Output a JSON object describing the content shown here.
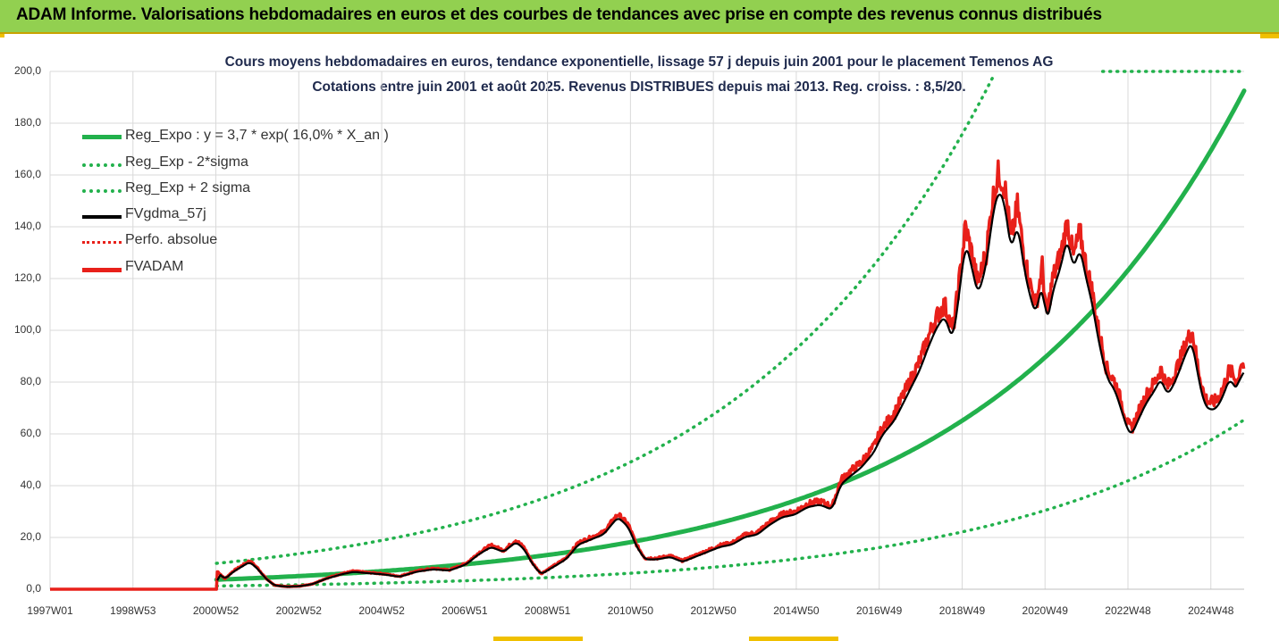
{
  "header": {
    "title": "ADAM Informe. Valorisations hebdomadaires en euros et des courbes de tendances avec prise en compte des revenus connus distribués"
  },
  "chart_data": {
    "type": "line",
    "title_line1": "Cours moyens hebdomadaires en euros, tendance exponentielle, lissage 57 j depuis juin 2001 pour le placement Temenos AG",
    "title_line2": "Cotations entre juin 2001 et août 2025. Revenus DISTRIBUES depuis mai 2013. Reg. croiss. : 8,5/20.",
    "y_ticks": [
      "0,0",
      "20,0",
      "40,0",
      "60,0",
      "80,0",
      "100,0",
      "120,0",
      "140,0",
      "160,0",
      "180,0",
      "200,0"
    ],
    "ylim": [
      0,
      200
    ],
    "x_ticks": [
      "1997W01",
      "1998W53",
      "2000W52",
      "2002W52",
      "2004W52",
      "2006W51",
      "2008W51",
      "2010W50",
      "2012W50",
      "2014W50",
      "2016W49",
      "2018W49",
      "2020W49",
      "2022W48",
      "2024W48"
    ],
    "xlim": [
      1997.0,
      2025.7
    ],
    "grid": true,
    "legend_position": "top-left",
    "series": [
      {
        "name": "Reg_Expo : y = 3,7 * exp( 16,0% *  X_an )",
        "color": "#22b14c",
        "style": "solid",
        "trend": "center"
      },
      {
        "name": "Reg_Exp - 2*sigma",
        "color": "#22b14c",
        "style": "dotted",
        "trend": "low"
      },
      {
        "name": "Reg_Exp + 2 sigma",
        "color": "#22b14c",
        "style": "dotted",
        "trend": "high"
      },
      {
        "name": "FVgdma_57j",
        "color": "#000000",
        "style": "solid",
        "trend": "smooth"
      },
      {
        "name": "Perfo. absolue",
        "color": "#e8201a",
        "style": "dotted",
        "trend": "none"
      },
      {
        "name": "FVADAM",
        "color": "#e8201a",
        "style": "solid",
        "trend": "price"
      }
    ],
    "price_points": [
      [
        1997.0,
        0
      ],
      [
        2001.0,
        0
      ],
      [
        2001.02,
        7
      ],
      [
        2001.2,
        4
      ],
      [
        2001.4,
        7
      ],
      [
        2001.6,
        9
      ],
      [
        2001.8,
        11
      ],
      [
        2002.0,
        8
      ],
      [
        2002.2,
        4
      ],
      [
        2002.4,
        1.5
      ],
      [
        2002.7,
        1
      ],
      [
        2003.0,
        1.2
      ],
      [
        2003.3,
        2
      ],
      [
        2003.6,
        4
      ],
      [
        2004.0,
        6
      ],
      [
        2004.3,
        7
      ],
      [
        2004.6,
        6.5
      ],
      [
        2005.0,
        6
      ],
      [
        2005.4,
        5
      ],
      [
        2005.8,
        7
      ],
      [
        2006.2,
        8
      ],
      [
        2006.6,
        7.5
      ],
      [
        2007.0,
        10
      ],
      [
        2007.3,
        14
      ],
      [
        2007.6,
        17
      ],
      [
        2007.9,
        15
      ],
      [
        2008.2,
        19
      ],
      [
        2008.4,
        16
      ],
      [
        2008.6,
        10
      ],
      [
        2008.8,
        6
      ],
      [
        2009.1,
        9
      ],
      [
        2009.4,
        12
      ],
      [
        2009.7,
        18
      ],
      [
        2010.0,
        20
      ],
      [
        2010.3,
        22
      ],
      [
        2010.5,
        26
      ],
      [
        2010.65,
        29
      ],
      [
        2010.9,
        25
      ],
      [
        2011.1,
        17
      ],
      [
        2011.3,
        12
      ],
      [
        2011.6,
        12
      ],
      [
        2011.9,
        13
      ],
      [
        2012.2,
        11
      ],
      [
        2012.5,
        13
      ],
      [
        2012.8,
        15
      ],
      [
        2013.1,
        17
      ],
      [
        2013.4,
        18
      ],
      [
        2013.7,
        21
      ],
      [
        2014.0,
        22
      ],
      [
        2014.3,
        26
      ],
      [
        2014.6,
        29
      ],
      [
        2014.9,
        30
      ],
      [
        2015.2,
        33
      ],
      [
        2015.5,
        34
      ],
      [
        2015.8,
        32
      ],
      [
        2016.0,
        42
      ],
      [
        2016.2,
        45
      ],
      [
        2016.5,
        49
      ],
      [
        2016.8,
        55
      ],
      [
        2017.0,
        62
      ],
      [
        2017.3,
        68
      ],
      [
        2017.6,
        78
      ],
      [
        2017.9,
        88
      ],
      [
        2018.1,
        97
      ],
      [
        2018.3,
        105
      ],
      [
        2018.5,
        110
      ],
      [
        2018.7,
        100
      ],
      [
        2018.9,
        125
      ],
      [
        2019.0,
        140
      ],
      [
        2019.15,
        130
      ],
      [
        2019.3,
        118
      ],
      [
        2019.5,
        130
      ],
      [
        2019.65,
        150
      ],
      [
        2019.8,
        161
      ],
      [
        2019.95,
        155
      ],
      [
        2020.1,
        135
      ],
      [
        2020.25,
        148
      ],
      [
        2020.4,
        130
      ],
      [
        2020.55,
        118
      ],
      [
        2020.7,
        110
      ],
      [
        2020.85,
        125
      ],
      [
        2020.95,
        105
      ],
      [
        2021.1,
        120
      ],
      [
        2021.3,
        130
      ],
      [
        2021.45,
        142
      ],
      [
        2021.6,
        128
      ],
      [
        2021.75,
        138
      ],
      [
        2021.9,
        125
      ],
      [
        2022.05,
        115
      ],
      [
        2022.2,
        100
      ],
      [
        2022.4,
        85
      ],
      [
        2022.6,
        80
      ],
      [
        2022.75,
        72
      ],
      [
        2022.9,
        64
      ],
      [
        2023.0,
        62
      ],
      [
        2023.15,
        68
      ],
      [
        2023.35,
        75
      ],
      [
        2023.55,
        80
      ],
      [
        2023.7,
        85
      ],
      [
        2023.85,
        78
      ],
      [
        2024.0,
        82
      ],
      [
        2024.15,
        88
      ],
      [
        2024.3,
        95
      ],
      [
        2024.45,
        100
      ],
      [
        2024.6,
        85
      ],
      [
        2024.75,
        74
      ],
      [
        2024.9,
        72
      ],
      [
        2025.05,
        73
      ],
      [
        2025.2,
        78
      ],
      [
        2025.35,
        85
      ],
      [
        2025.45,
        82
      ],
      [
        2025.55,
        80
      ],
      [
        2025.62,
        88
      ],
      [
        2025.7,
        86
      ]
    ]
  }
}
